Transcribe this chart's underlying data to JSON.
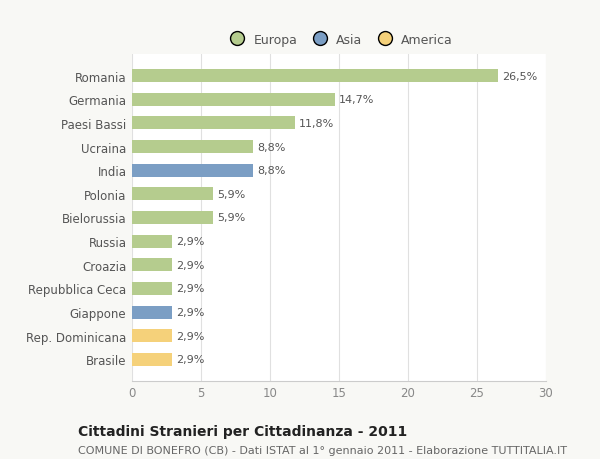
{
  "categories": [
    "Romania",
    "Germania",
    "Paesi Bassi",
    "Ucraina",
    "India",
    "Polonia",
    "Bielorussia",
    "Russia",
    "Croazia",
    "Repubblica Ceca",
    "Giappone",
    "Rep. Dominicana",
    "Brasile"
  ],
  "values": [
    26.5,
    14.7,
    11.8,
    8.8,
    8.8,
    5.9,
    5.9,
    2.9,
    2.9,
    2.9,
    2.9,
    2.9,
    2.9
  ],
  "labels": [
    "26,5%",
    "14,7%",
    "11,8%",
    "8,8%",
    "8,8%",
    "5,9%",
    "5,9%",
    "2,9%",
    "2,9%",
    "2,9%",
    "2,9%",
    "2,9%",
    "2,9%"
  ],
  "continents": [
    "Europa",
    "Europa",
    "Europa",
    "Europa",
    "Asia",
    "Europa",
    "Europa",
    "Europa",
    "Europa",
    "Europa",
    "Asia",
    "America",
    "America"
  ],
  "colors": {
    "Europa": "#b5cc8e",
    "Asia": "#7b9ec4",
    "America": "#f5d17a"
  },
  "xlim": [
    0,
    30
  ],
  "xticks": [
    0,
    5,
    10,
    15,
    20,
    25,
    30
  ],
  "title": "Cittadini Stranieri per Cittadinanza - 2011",
  "subtitle": "COMUNE DI BONEFRO (CB) - Dati ISTAT al 1° gennaio 2011 - Elaborazione TUTTITALIA.IT",
  "background_color": "#f8f8f5",
  "plot_bg_color": "#ffffff",
  "grid_color": "#e0e0e0",
  "title_fontsize": 10,
  "subtitle_fontsize": 8,
  "tick_fontsize": 8.5,
  "label_fontsize": 8,
  "legend_fontsize": 9,
  "bar_height": 0.55
}
